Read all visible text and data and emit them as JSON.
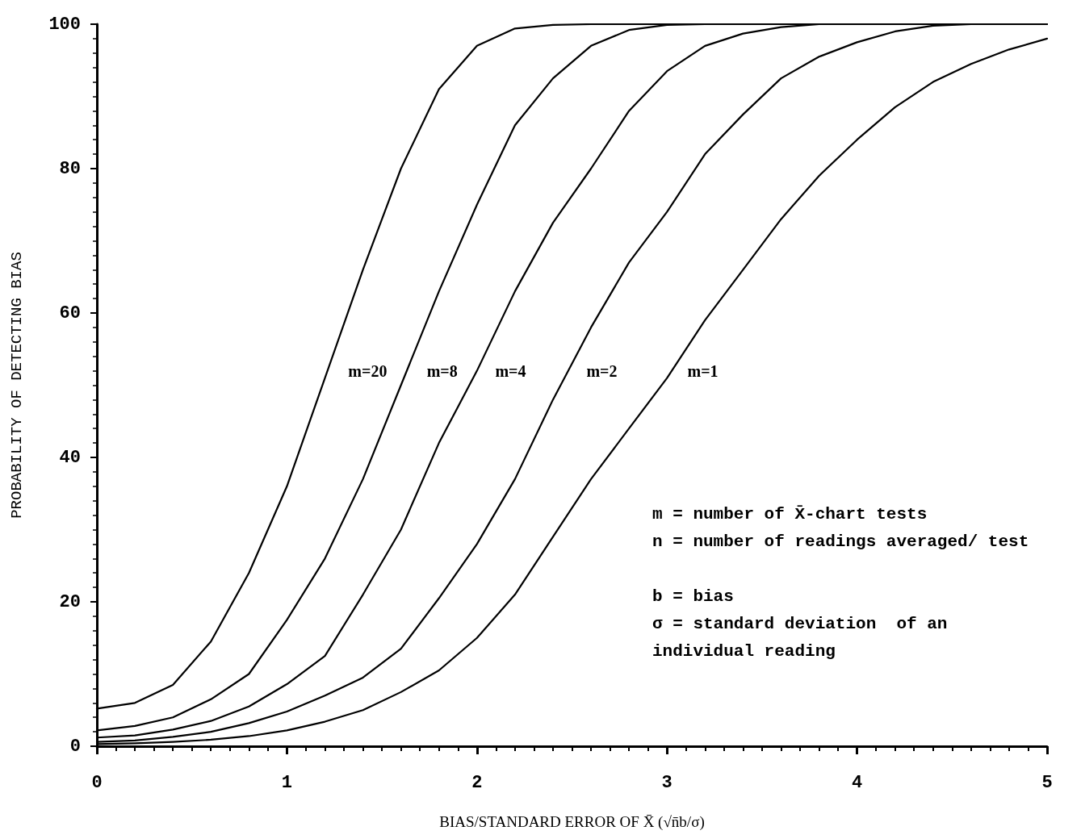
{
  "chart_data": {
    "type": "line",
    "xlabel": "BIAS/STANDARD ERROR OF X̄ (√n̄b/σ)",
    "ylabel": "PROBABILITY OF DETECTING BIAS",
    "x": [
      0,
      0.2,
      0.4,
      0.6,
      0.8,
      1.0,
      1.2,
      1.4,
      1.6,
      1.8,
      2.0,
      2.2,
      2.4,
      2.6,
      2.8,
      3.0,
      3.2,
      3.4,
      3.6,
      3.8,
      4.0,
      4.2,
      4.4,
      4.6,
      4.8,
      5.0
    ],
    "series": [
      {
        "name": "m=20",
        "color": "#000000",
        "values": [
          5.2,
          6,
          8.5,
          14.5,
          24,
          36,
          51,
          66,
          80,
          91,
          97,
          99.4,
          99.9,
          100,
          100,
          100,
          100,
          100,
          100,
          100,
          100,
          100,
          100,
          100,
          100,
          100
        ]
      },
      {
        "name": "m=8",
        "color": "#000000",
        "values": [
          2.2,
          2.8,
          4,
          6.5,
          10,
          17.5,
          26,
          37,
          50,
          63,
          75,
          86,
          92.5,
          97,
          99.2,
          99.9,
          100,
          100,
          100,
          100,
          100,
          100,
          100,
          100,
          100,
          100
        ]
      },
      {
        "name": "m=4",
        "color": "#000000",
        "values": [
          1.2,
          1.5,
          2.3,
          3.5,
          5.5,
          8.6,
          12.5,
          21,
          30,
          42,
          52,
          63,
          72.5,
          80,
          88,
          93.5,
          97,
          98.7,
          99.6,
          100,
          100,
          100,
          100,
          100,
          100,
          100
        ]
      },
      {
        "name": "m=2",
        "color": "#000000",
        "values": [
          0.6,
          0.8,
          1.3,
          2,
          3.2,
          4.8,
          7,
          9.5,
          13.5,
          20.5,
          28,
          37,
          48,
          58,
          67,
          74,
          82,
          87.5,
          92.5,
          95.5,
          97.5,
          99,
          99.8,
          100,
          100,
          100
        ]
      },
      {
        "name": "m=1",
        "color": "#000000",
        "values": [
          0.3,
          0.4,
          0.6,
          0.9,
          1.4,
          2.2,
          3.4,
          5,
          7.5,
          10.5,
          15,
          21,
          29,
          37,
          44,
          51,
          59,
          66,
          73,
          79,
          84,
          88.5,
          92,
          94.5,
          96.5,
          98
        ]
      }
    ],
    "xlim": [
      0,
      5
    ],
    "xticks": [
      0,
      1,
      2,
      3,
      4,
      5
    ],
    "ylim": [
      0,
      100
    ],
    "yticks": [
      0,
      20,
      40,
      60,
      80,
      100
    ],
    "grid": false,
    "marker": "none",
    "line_style": "solid",
    "annotations": [
      "m = number of X̄-chart tests",
      "n = number of readings averaged/ test",
      "b = bias",
      "σ = standard deviation  of an individual reading"
    ]
  }
}
